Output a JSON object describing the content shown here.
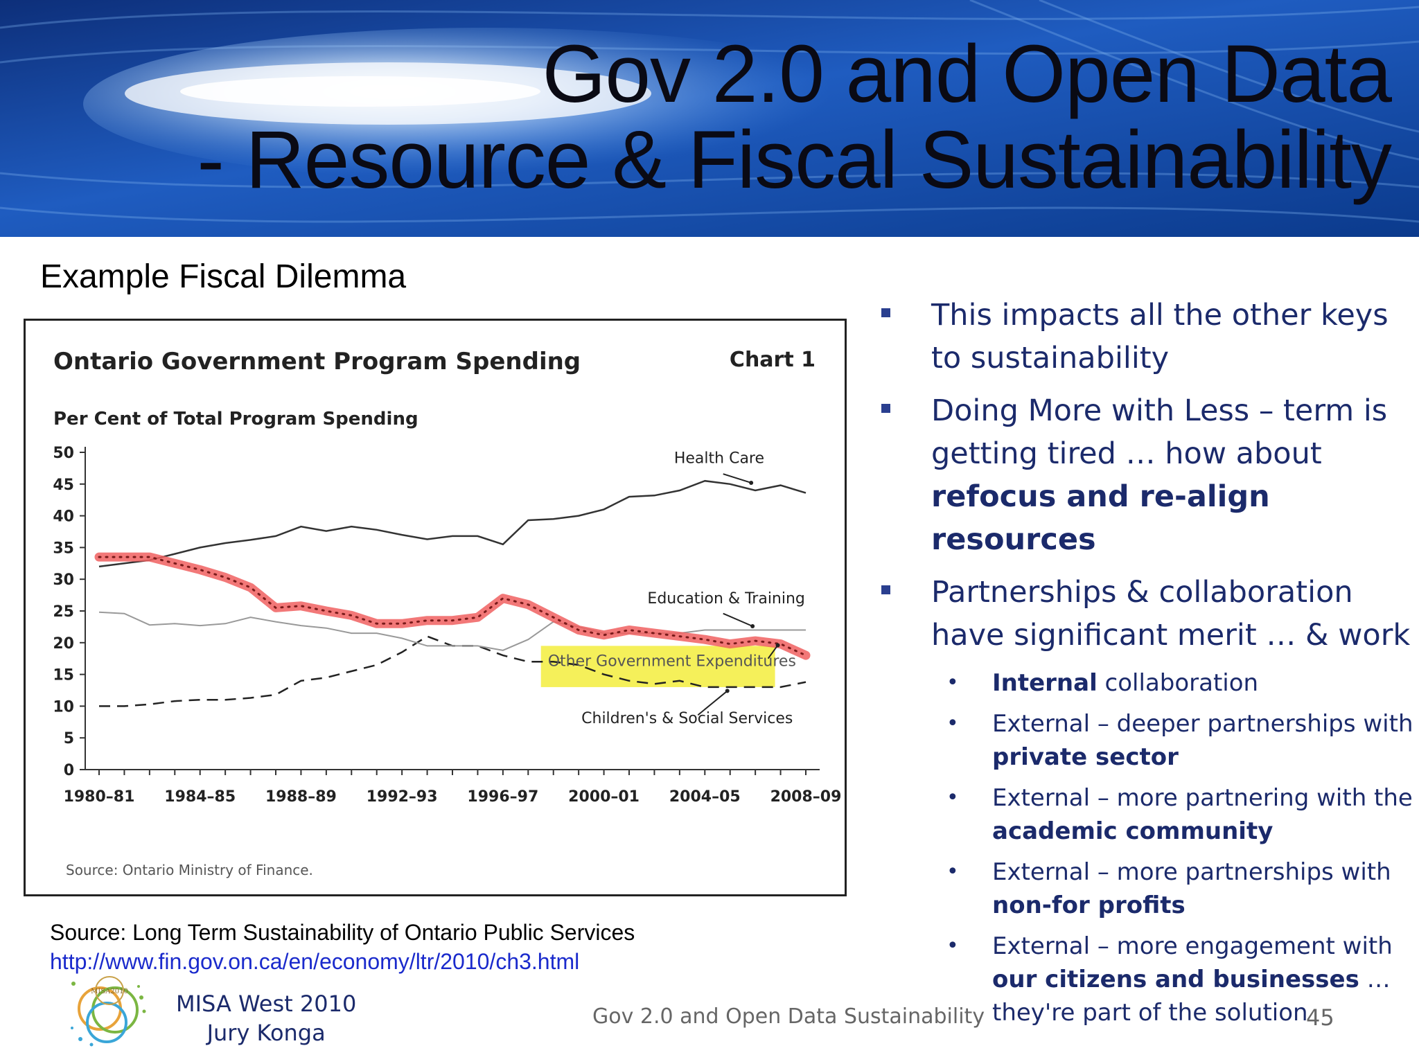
{
  "slide": {
    "title_line1": "Gov 2.0 and Open Data",
    "title_line2": "- Resource & Fiscal Sustainability",
    "subtitle": "Example Fiscal Dilemma",
    "source": "Source:  Long Term Sustainability of Ontario Public Services",
    "link": "http://www.fin.gov.on.ca/en/economy/ltr/2010/ch3.html"
  },
  "bullets": [
    {
      "text": "This impacts all the other keys to sustainability"
    },
    {
      "pre": "Doing More with Less – term is getting tired … how about ",
      "bold": "refocus and re-align resources"
    },
    {
      "text": "Partnerships & collaboration have significant merit … & work"
    }
  ],
  "subbullets": [
    {
      "bold": "Internal",
      "post": "  collaboration"
    },
    {
      "pre": "External – deeper partnerships with ",
      "bold": "private sector"
    },
    {
      "pre": "External – more partnering with the ",
      "bold": "academic community"
    },
    {
      "pre": "External – more partnerships with ",
      "bold": "non-for profits"
    },
    {
      "pre": "External – more engagement with ",
      "bold": "our citizens and businesses",
      "post": " … they're part of the solution"
    }
  ],
  "footer": {
    "org_line1": "MISA West 2010",
    "org_line2": "Jury Konga",
    "center": "Gov 2.0 and  Open Data Sustainability",
    "page": "45",
    "logo_text": "MISA2010"
  },
  "chart_data": {
    "type": "line",
    "title": "Ontario Government Program Spending",
    "chart_label": "Chart 1",
    "ylabel": "Per Cent of Total Program Spending",
    "source_note": "Source: Ontario Ministry of Finance.",
    "ylim": [
      0,
      50
    ],
    "yticks": [
      0,
      5,
      10,
      15,
      20,
      25,
      30,
      35,
      40,
      45,
      50
    ],
    "x_tick_labels": [
      "1980–81",
      "1984–85",
      "1988–89",
      "1992–93",
      "1996–97",
      "2000–01",
      "2004–05",
      "2008–09"
    ],
    "x": [
      "1980–81",
      "1981–82",
      "1982–83",
      "1983–84",
      "1984–85",
      "1985–86",
      "1986–87",
      "1987–88",
      "1988–89",
      "1989–90",
      "1990–91",
      "1991–92",
      "1992–93",
      "1993–94",
      "1994–95",
      "1995–96",
      "1996–97",
      "1997–98",
      "1998–99",
      "1999–00",
      "2000–01",
      "2001–02",
      "2002–03",
      "2003–04",
      "2004–05",
      "2005–06",
      "2006–07",
      "2007–08",
      "2008–09"
    ],
    "series": [
      {
        "name": "Health Care",
        "style": "solid-dark",
        "color": "#333333",
        "values": [
          32,
          32.5,
          33,
          34,
          35,
          35.7,
          36.2,
          36.8,
          38.3,
          37.6,
          38.3,
          37.8,
          37,
          36.3,
          36.8,
          36.8,
          35.5,
          39.3,
          39.5,
          40,
          41,
          43,
          43.2,
          44,
          45.5,
          45,
          44,
          44.8,
          43.6
        ]
      },
      {
        "name": "Education & Training",
        "style": "solid-light",
        "color": "#999999",
        "values": [
          24.8,
          24.6,
          22.8,
          23,
          22.7,
          23,
          24,
          23.3,
          22.7,
          22.3,
          21.5,
          21.5,
          20.7,
          19.5,
          19.5,
          19.5,
          18.8,
          20.5,
          23.3,
          22.5,
          21.5,
          21.5,
          21.5,
          21.5,
          22,
          22,
          22,
          22,
          22
        ]
      },
      {
        "name": "Other Government Expenditures",
        "style": "highlight",
        "color": "#ee4444",
        "values": [
          33.5,
          33.5,
          33.5,
          32.5,
          31.5,
          30.3,
          28.7,
          25.5,
          25.8,
          25,
          24.3,
          23,
          23,
          23.5,
          23.5,
          24,
          27,
          26,
          24,
          22,
          21.2,
          22,
          21.5,
          21,
          20.5,
          19.8,
          20.3,
          19.8,
          18
        ]
      },
      {
        "name": "Children's & Social Services",
        "style": "dashed",
        "color": "#222222",
        "values": [
          10,
          10,
          10.3,
          10.8,
          11,
          11,
          11.3,
          11.8,
          14,
          14.5,
          15.5,
          16.5,
          18.5,
          21,
          19.5,
          19.5,
          18,
          17,
          17,
          16.5,
          15,
          14,
          13.5,
          14,
          13,
          13,
          13,
          13,
          13.8
        ]
      }
    ],
    "highlight_box": "yellow",
    "highlight_color": "#f5f05a"
  }
}
